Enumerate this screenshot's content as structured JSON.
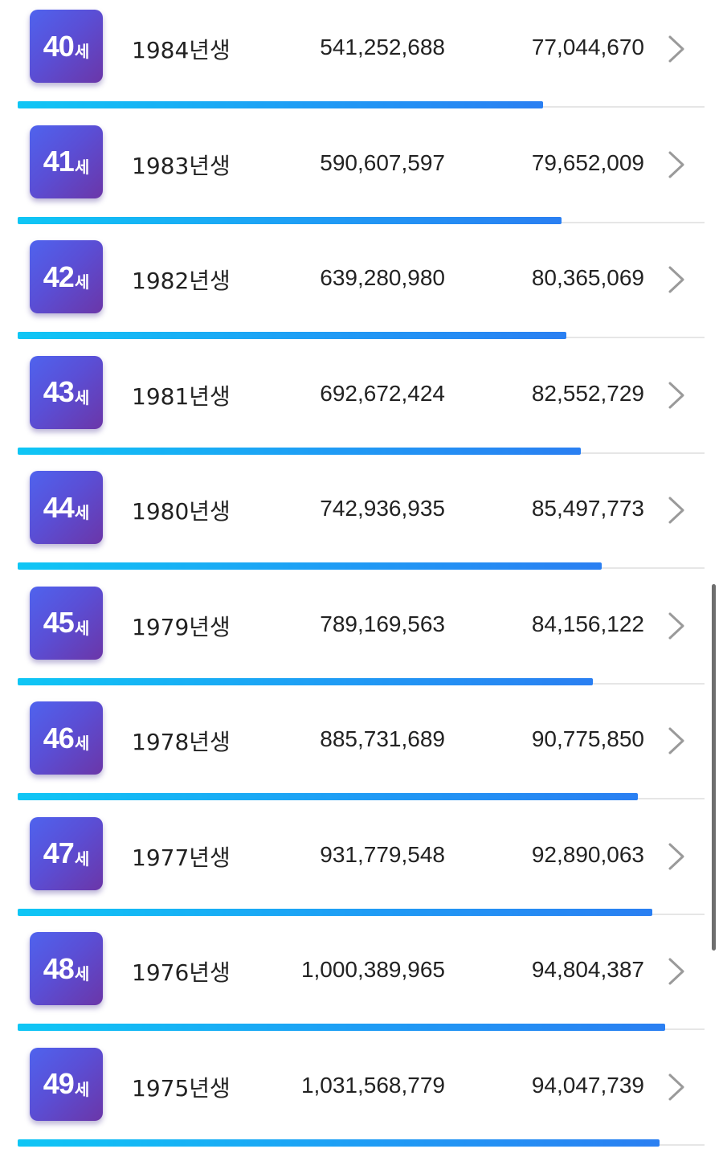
{
  "rows": [
    {
      "age": "40",
      "unit": "세",
      "year": "1984년생",
      "value1": "541,252,688",
      "value2": "77,044,670",
      "progress": 0.765
    },
    {
      "age": "41",
      "unit": "세",
      "year": "1983년생",
      "value1": "590,607,597",
      "value2": "79,652,009",
      "progress": 0.792
    },
    {
      "age": "42",
      "unit": "세",
      "year": "1982년생",
      "value1": "639,280,980",
      "value2": "80,365,069",
      "progress": 0.799
    },
    {
      "age": "43",
      "unit": "세",
      "year": "1981년생",
      "value1": "692,672,424",
      "value2": "82,552,729",
      "progress": 0.82
    },
    {
      "age": "44",
      "unit": "세",
      "year": "1980년생",
      "value1": "742,936,935",
      "value2": "85,497,773",
      "progress": 0.85
    },
    {
      "age": "45",
      "unit": "세",
      "year": "1979년생",
      "value1": "789,169,563",
      "value2": "84,156,122",
      "progress": 0.837
    },
    {
      "age": "46",
      "unit": "세",
      "year": "1978년생",
      "value1": "885,731,689",
      "value2": "90,775,850",
      "progress": 0.903
    },
    {
      "age": "47",
      "unit": "세",
      "year": "1977년생",
      "value1": "931,779,548",
      "value2": "92,890,063",
      "progress": 0.924
    },
    {
      "age": "48",
      "unit": "세",
      "year": "1976년생",
      "value1": "1,000,389,965",
      "value2": "94,804,387",
      "progress": 0.943
    },
    {
      "age": "49",
      "unit": "세",
      "year": "1975년생",
      "value1": "1,031,568,779",
      "value2": "94,047,739",
      "progress": 0.935
    }
  ],
  "icons": {
    "row_action": "chevron-right-icon"
  },
  "colors": {
    "badge_start": "#4f63ee",
    "badge_end": "#6b36a8",
    "bar_start": "#0fc6f5",
    "bar_end": "#2a7ff2",
    "chevron": "#9a9a9a"
  }
}
